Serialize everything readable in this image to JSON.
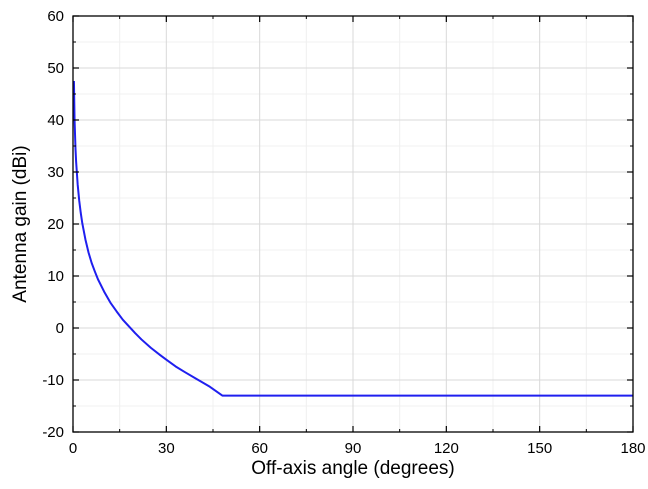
{
  "chart_data": {
    "type": "line",
    "title": "",
    "xlabel": "Off-axis angle (degrees)",
    "ylabel": "Antenna gain (dBi)",
    "xlim": [
      0,
      180
    ],
    "ylim": [
      -20,
      60
    ],
    "x_ticks": [
      0,
      30,
      60,
      90,
      120,
      150,
      180
    ],
    "y_ticks": [
      -20,
      -10,
      0,
      10,
      20,
      30,
      40,
      50,
      60
    ],
    "x_tick_labels": [
      "0",
      "30",
      "60",
      "90",
      "120",
      "150",
      "180"
    ],
    "y_tick_labels": [
      "-20",
      "-10",
      "0",
      "10",
      "20",
      "30",
      "40",
      "50",
      "60"
    ],
    "grid": true,
    "series": [
      {
        "color": "#1f1fef",
        "x": [
          0.3,
          0.5,
          0.8,
          1,
          1.5,
          2,
          2.5,
          3,
          4,
          5,
          6,
          7,
          8,
          10,
          12,
          14,
          16,
          18,
          20,
          22,
          25,
          28,
          30,
          33,
          36,
          40,
          44,
          48,
          60,
          90,
          120,
          150,
          180
        ],
        "y": [
          47.5,
          40,
          34.5,
          32,
          27.6,
          24.5,
          22.1,
          20.1,
          17,
          14.5,
          12.5,
          10.9,
          9.4,
          7,
          4.9,
          3.2,
          1.6,
          0.3,
          -1,
          -2.2,
          -3.8,
          -5.2,
          -6.1,
          -7.4,
          -8.5,
          -9.9,
          -11.3,
          -13,
          -13,
          -13,
          -13,
          -13,
          -13
        ]
      }
    ]
  }
}
